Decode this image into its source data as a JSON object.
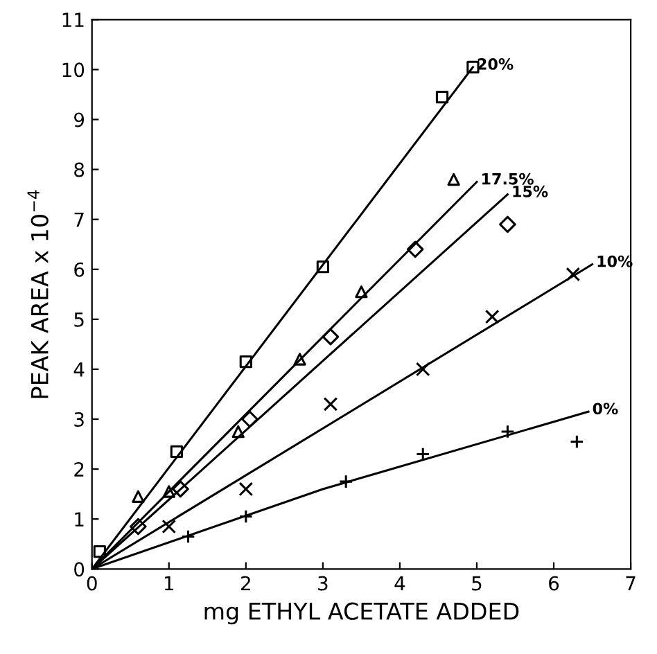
{
  "chart_data": {
    "type": "scatter",
    "xlabel": "mg ETHYL ACETATE ADDED",
    "ylabel": "PEAK AREA x 10$^{−4}$",
    "xlim": [
      0,
      7
    ],
    "ylim": [
      0,
      11
    ],
    "xticks": [
      0,
      1,
      2,
      3,
      4,
      5,
      6,
      7
    ],
    "yticks": [
      0,
      1,
      2,
      3,
      4,
      5,
      6,
      7,
      8,
      9,
      10,
      11
    ],
    "grid": false,
    "legend": false,
    "series": [
      {
        "marker": "square",
        "color": "#000000",
        "x": [
          0.1,
          1.1,
          2.0,
          3.0,
          4.55,
          4.95
        ],
        "values": [
          0.35,
          2.35,
          4.15,
          6.05,
          9.45,
          10.05
        ]
      },
      {
        "marker": "triangle",
        "color": "#000000",
        "x": [
          0.6,
          1.0,
          1.9,
          2.7,
          3.5,
          4.7
        ],
        "values": [
          1.45,
          1.55,
          2.75,
          4.2,
          5.55,
          7.8
        ]
      },
      {
        "marker": "diamond",
        "color": "#000000",
        "x": [
          0.6,
          1.15,
          2.05,
          3.1,
          4.2,
          5.4
        ],
        "values": [
          0.85,
          1.6,
          3.0,
          4.65,
          6.4,
          6.9
        ]
      },
      {
        "marker": "cross",
        "color": "#000000",
        "x": [
          1.0,
          2.0,
          3.1,
          4.3,
          5.2,
          6.25
        ],
        "values": [
          0.85,
          1.6,
          3.3,
          4.0,
          5.05,
          5.9
        ]
      },
      {
        "marker": "plus",
        "color": "#000000",
        "x": [
          1.25,
          2.0,
          3.3,
          4.3,
          5.4,
          6.3
        ],
        "values": [
          0.65,
          1.05,
          1.75,
          2.3,
          2.75,
          2.55
        ]
      },
      {
        "type": "line",
        "name": "20%",
        "marker": "none",
        "color": "#000000",
        "x": [
          0,
          4.95
        ],
        "values": [
          0,
          10.05
        ]
      },
      {
        "type": "line",
        "name": "17.5%",
        "marker": "none",
        "color": "#000000",
        "x": [
          0,
          5.0
        ],
        "values": [
          0,
          7.75
        ]
      },
      {
        "type": "line",
        "name": "15%",
        "marker": "none",
        "color": "#000000",
        "x": [
          0,
          5.4
        ],
        "values": [
          0,
          7.5
        ]
      },
      {
        "type": "line",
        "name": "10%",
        "marker": "none",
        "color": "#000000",
        "x": [
          0,
          6.5
        ],
        "values": [
          0,
          6.1
        ]
      },
      {
        "type": "line",
        "name": "0%",
        "marker": "none",
        "color": "#000000",
        "x": [
          0,
          3.0,
          6.45
        ],
        "values": [
          0,
          1.6,
          3.15
        ]
      }
    ]
  }
}
